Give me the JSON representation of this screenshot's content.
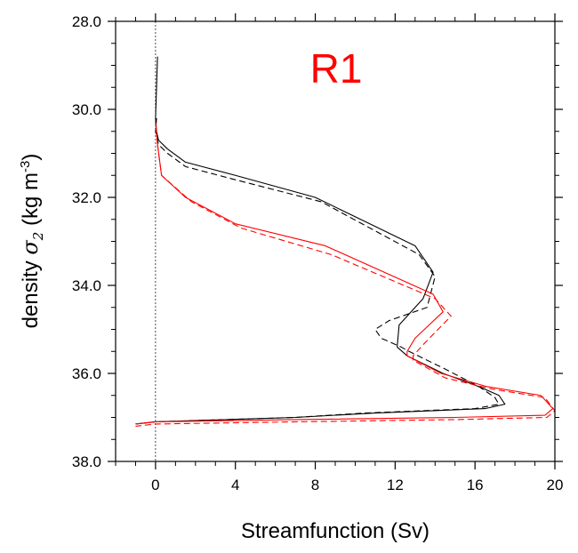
{
  "chart_data": {
    "type": "line",
    "panel_label": "R1",
    "xlabel": "Streamfunction (Sv)",
    "ylabel_prefix": "density ",
    "ylabel_symbol": "σ",
    "ylabel_subscript": "2",
    "ylabel_unit": " (kg m",
    "ylabel_unit_sup": "-3",
    "ylabel_unit_close": ")",
    "xlim": [
      -2,
      20
    ],
    "ylim": [
      28.0,
      38.0
    ],
    "y_inverted": true,
    "x_ticks": [
      0,
      4,
      8,
      12,
      16,
      20
    ],
    "x_tick_labels": [
      "0",
      "4",
      "8",
      "12",
      "16",
      "20"
    ],
    "y_ticks": [
      28.0,
      30.0,
      32.0,
      34.0,
      36.0,
      38.0
    ],
    "y_tick_labels": [
      "28.0",
      "30.0",
      "32.0",
      "34.0",
      "36.0",
      "38.0"
    ],
    "zero_line": 0,
    "colors": {
      "black": "#000000",
      "red": "#ff0000",
      "label": "#ff0000"
    },
    "series": [
      {
        "color": "#000000",
        "dash": "solid",
        "x": [
          0.1,
          0.05,
          0.0,
          0.05,
          0.15,
          0.6,
          1.5,
          4.0,
          8.0,
          13.0,
          13.9,
          13.4,
          12.2,
          12.1,
          12.6,
          14.4,
          16.2,
          17.2,
          17.5,
          16.5,
          11.0,
          7.0,
          0.0,
          -1.0
        ],
        "y": [
          28.8,
          29.5,
          30.2,
          30.5,
          30.7,
          30.9,
          31.2,
          31.5,
          32.0,
          33.1,
          33.7,
          34.3,
          34.9,
          35.4,
          35.6,
          36.0,
          36.3,
          36.5,
          36.7,
          36.8,
          36.9,
          37.0,
          37.1,
          37.15
        ]
      },
      {
        "color": "#000000",
        "dash": "dashed",
        "x": [
          0.05,
          0.0,
          0.15,
          0.6,
          1.5,
          4.0,
          8.3,
          13.2,
          14.0,
          13.6,
          11.7,
          11.0,
          11.3,
          12.3,
          12.7,
          14.5,
          16.2,
          17.0,
          17.2,
          16.0,
          10.5,
          7.0,
          0.0,
          -1.0
        ],
        "y": [
          30.2,
          30.5,
          30.8,
          31.0,
          31.3,
          31.6,
          32.1,
          33.3,
          33.8,
          34.5,
          34.8,
          35.0,
          35.2,
          35.4,
          35.5,
          35.9,
          36.3,
          36.55,
          36.7,
          36.8,
          36.9,
          37.0,
          37.1,
          37.15
        ]
      },
      {
        "color": "#ff0000",
        "dash": "solid",
        "x": [
          0.0,
          0.1,
          0.3,
          1.5,
          4.0,
          8.5,
          13.9,
          14.4,
          13.0,
          12.6,
          12.6,
          14.3,
          16.6,
          19.3,
          19.9,
          19.5,
          15.0,
          7.0,
          0.0,
          -1.0
        ],
        "y": [
          30.3,
          30.8,
          31.5,
          32.0,
          32.6,
          33.1,
          34.2,
          34.6,
          35.2,
          35.5,
          35.6,
          36.0,
          36.3,
          36.5,
          36.8,
          36.95,
          37.0,
          37.05,
          37.1,
          37.15
        ]
      },
      {
        "color": "#ff0000",
        "dash": "dashed",
        "x": [
          0.1,
          0.3,
          1.8,
          4.3,
          8.8,
          14.0,
          14.8,
          13.5,
          12.9,
          12.9,
          14.5,
          16.8,
          19.5,
          20.0,
          19.6,
          15.0,
          7.0,
          0.0,
          -1.0
        ],
        "y": [
          30.8,
          31.5,
          32.1,
          32.7,
          33.3,
          34.3,
          34.7,
          35.3,
          35.6,
          35.7,
          36.1,
          36.35,
          36.55,
          36.85,
          37.0,
          37.05,
          37.1,
          37.15,
          37.2
        ]
      }
    ]
  }
}
